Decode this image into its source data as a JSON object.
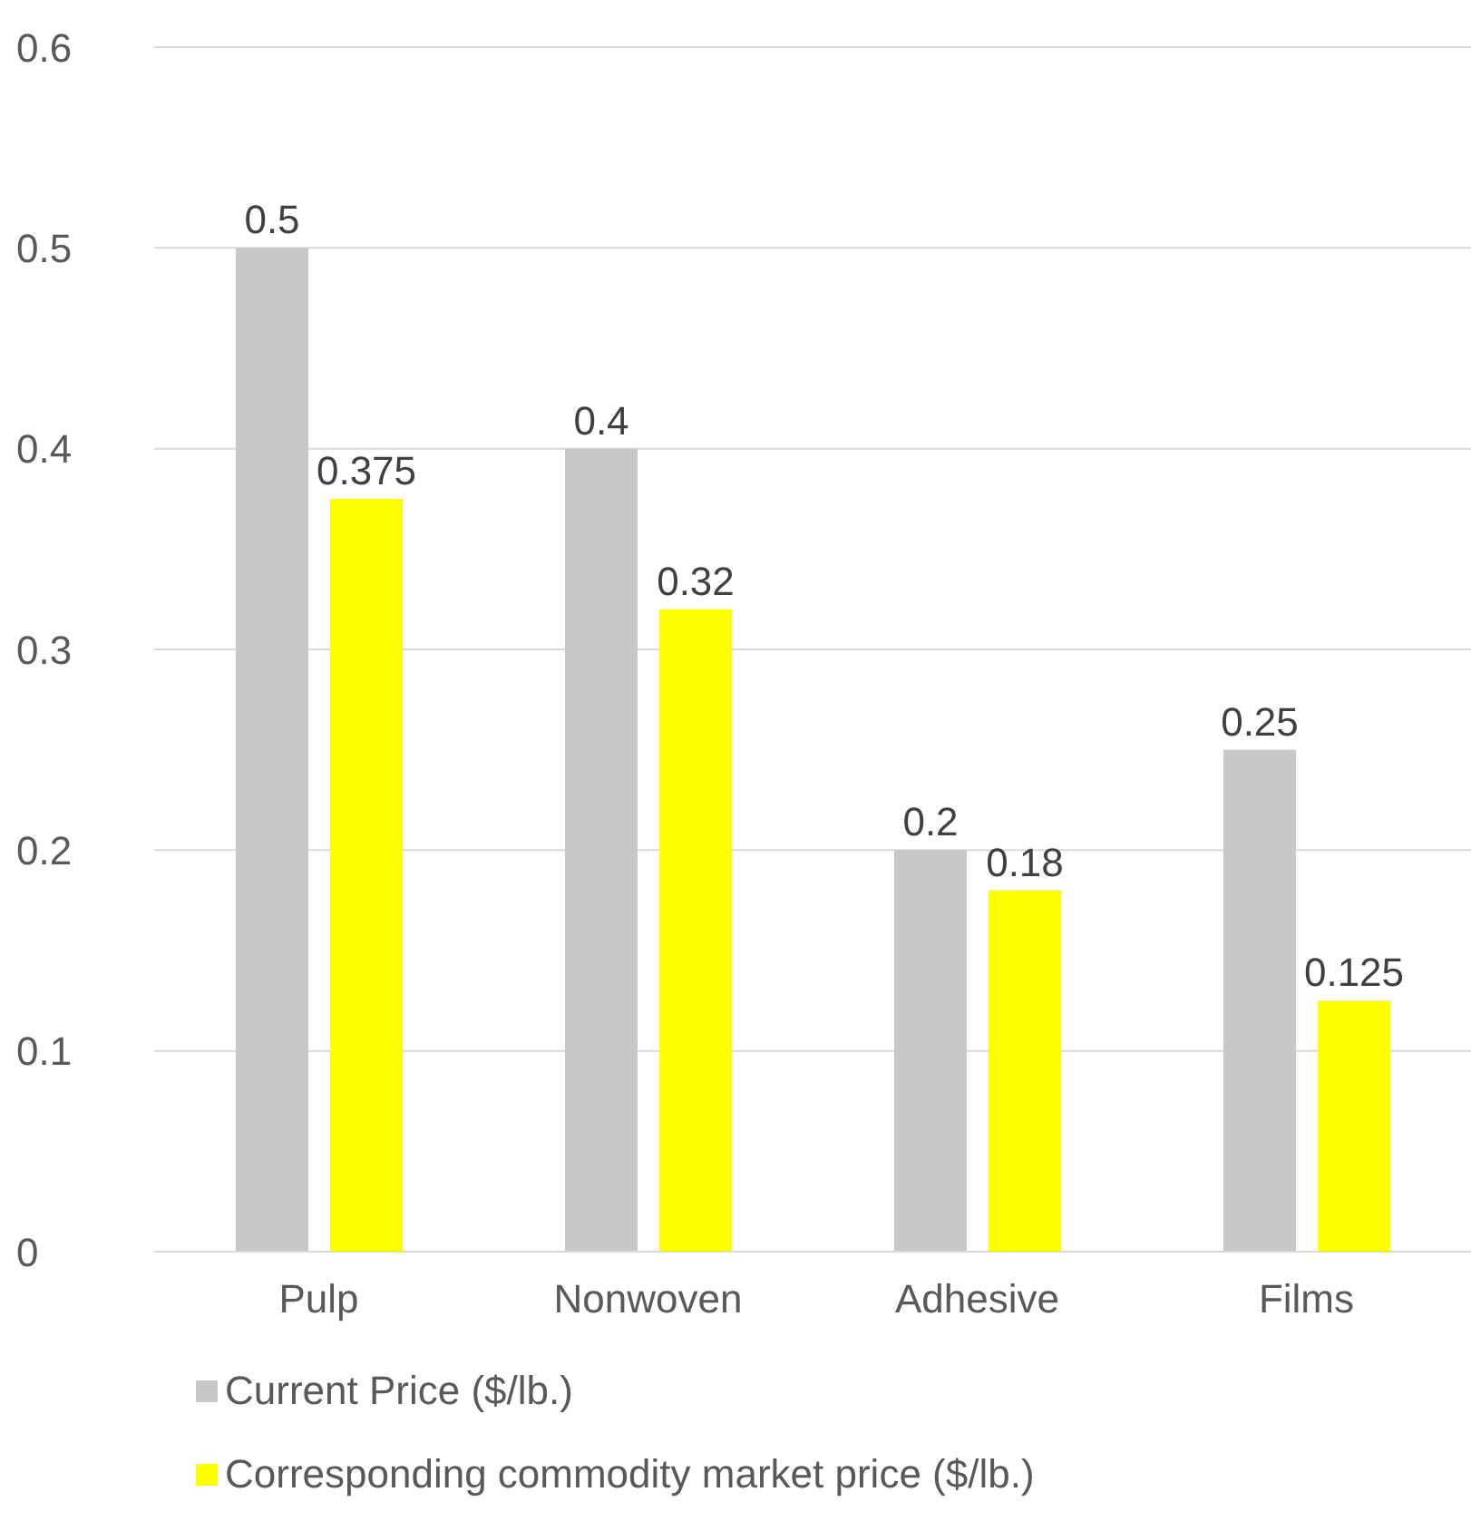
{
  "chart_data": {
    "type": "bar",
    "categories": [
      "Pulp",
      "Nonwoven",
      "Adhesive",
      "Films"
    ],
    "series": [
      {
        "name": "Current Price ($/lb.)",
        "color": "#c8c8c8",
        "values": [
          0.5,
          0.4,
          0.2,
          0.25
        ]
      },
      {
        "name": "Corresponding commodity market price ($/lb.)",
        "color": "#ffff00",
        "values": [
          0.375,
          0.32,
          0.18,
          0.125
        ]
      }
    ],
    "ylim": [
      0,
      0.6
    ],
    "yticks": [
      0,
      0.1,
      0.2,
      0.3,
      0.4,
      0.5,
      0.6
    ],
    "grid": "y",
    "legend": "bottom left",
    "data_labels": true
  }
}
